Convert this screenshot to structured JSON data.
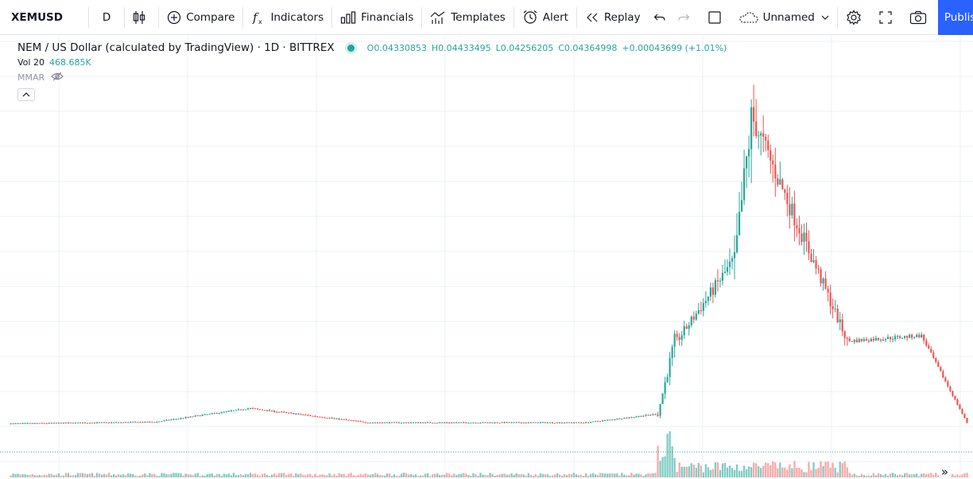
{
  "toolbar": {
    "symbol": "XEMUSD",
    "interval": "D",
    "compare_label": "Compare",
    "indicators_label": "Indicators",
    "financials_label": "Financials",
    "templates_label": "Templates",
    "alert_label": "Alert",
    "replay_label": "Replay",
    "layout_name": "Unnamed",
    "publish_label": "Publish",
    "icons": [
      "candles-icon",
      "compare-icon",
      "indicators-icon",
      "financials-icon",
      "templates-icon",
      "alert-icon",
      "replay-icon",
      "undo-icon",
      "redo-icon",
      "rectangle-icon",
      "cloud-icon",
      "chevron-down-icon",
      "gear-icon",
      "fullscreen-icon",
      "camera-icon"
    ]
  },
  "legend": {
    "title": "NEM / US Dollar (calculated by TradingView) · 1D · BITTREX",
    "open_key": "O",
    "open": "0.04330853",
    "high_key": "H",
    "high": "0.04433495",
    "low_key": "L",
    "low": "0.04256205",
    "close_key": "C",
    "close": "0.04364998",
    "change": "+0.00043699 (+1.01%)",
    "volume_label": "Vol 20",
    "volume_value": "468.685K",
    "indicator_label": "MMAR",
    "eye_icon": "eye-off-icon"
  },
  "colors": {
    "up": "#26a69a",
    "down": "#ef5350",
    "up_volume": "#80cbc4",
    "down_volume": "#f7a9a7",
    "grid": "#eef0f5",
    "price_line": "#26a69a"
  },
  "chart_data": {
    "type": "candlestick",
    "y_scale": "linear",
    "grid": true,
    "volume_pane": true,
    "approximate": true,
    "series": [
      {
        "name": "XEMUSD",
        "phases": [
          {
            "segment": "flat",
            "bars": 60,
            "from": 0.042,
            "to": 0.045
          },
          {
            "segment": "rise",
            "bars": 40,
            "from": 0.045,
            "to": 0.071
          },
          {
            "segment": "drift-down",
            "bars": 50,
            "from": 0.071,
            "to": 0.044
          },
          {
            "segment": "flat",
            "bars": 90,
            "from": 0.044,
            "to": 0.044
          },
          {
            "segment": "slight-rise",
            "bars": 30,
            "from": 0.044,
            "to": 0.06
          },
          {
            "segment": "spike",
            "bars": 8,
            "from": 0.06,
            "to": 0.2
          },
          {
            "segment": "rally",
            "bars": 24,
            "from": 0.2,
            "to": 0.35
          },
          {
            "segment": "blowoff",
            "bars": 8,
            "from": 0.35,
            "to": 0.62
          },
          {
            "segment": "decline",
            "bars": 40,
            "from": 0.62,
            "to": 0.2
          },
          {
            "segment": "consolidate",
            "bars": 30,
            "from": 0.2,
            "to": 0.21
          },
          {
            "segment": "fade",
            "bars": 20,
            "from": 0.21,
            "to": 0.0436
          }
        ],
        "last_close": 0.04364998
      }
    ],
    "ylim": [
      0.0,
      0.7
    ]
  }
}
